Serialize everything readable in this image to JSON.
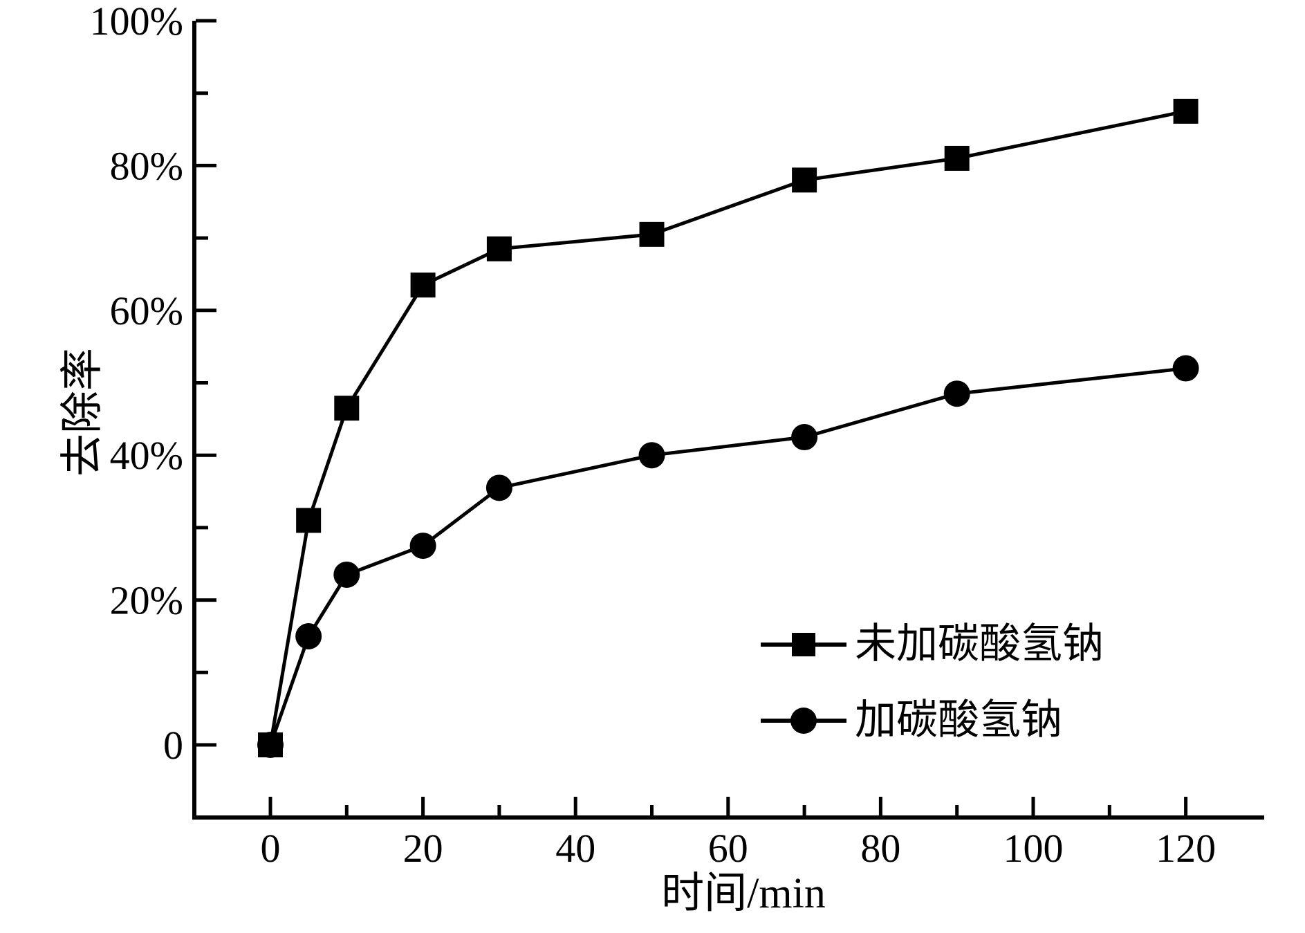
{
  "chart_data": {
    "type": "line",
    "title": "",
    "xlabel": "时间/min",
    "ylabel": "去除率",
    "x": [
      0,
      5,
      10,
      20,
      30,
      50,
      70,
      90,
      120
    ],
    "series": [
      {
        "name": "未加碳酸氢钠",
        "marker": "square",
        "color": "#000000",
        "values": [
          0,
          31,
          46.5,
          63.5,
          68.5,
          70.5,
          78,
          81,
          87.5
        ]
      },
      {
        "name": "加碳酸氢钠",
        "marker": "circle",
        "color": "#000000",
        "values": [
          0,
          15,
          23.5,
          27.5,
          35.5,
          40,
          42.5,
          48.5,
          52
        ]
      }
    ],
    "xlim": [
      -10,
      130
    ],
    "ylim": [
      -10,
      100
    ],
    "x_ticks_major": [
      0,
      20,
      40,
      60,
      80,
      100,
      120
    ],
    "x_ticks_minor": [
      10,
      30,
      50,
      70,
      90,
      110
    ],
    "x_tick_labels": [
      "0",
      "20",
      "40",
      "60",
      "80",
      "100",
      "120"
    ],
    "y_ticks_major": [
      0,
      20,
      40,
      60,
      80,
      100
    ],
    "y_ticks_minor": [
      10,
      30,
      50,
      70,
      90
    ],
    "y_tick_labels": [
      "0",
      "20%",
      "40%",
      "60%",
      "80%",
      "100%"
    ],
    "grid": false,
    "legend_position": "inside lower-right",
    "colors": {
      "line": "#000000",
      "background": "#ffffff"
    }
  }
}
